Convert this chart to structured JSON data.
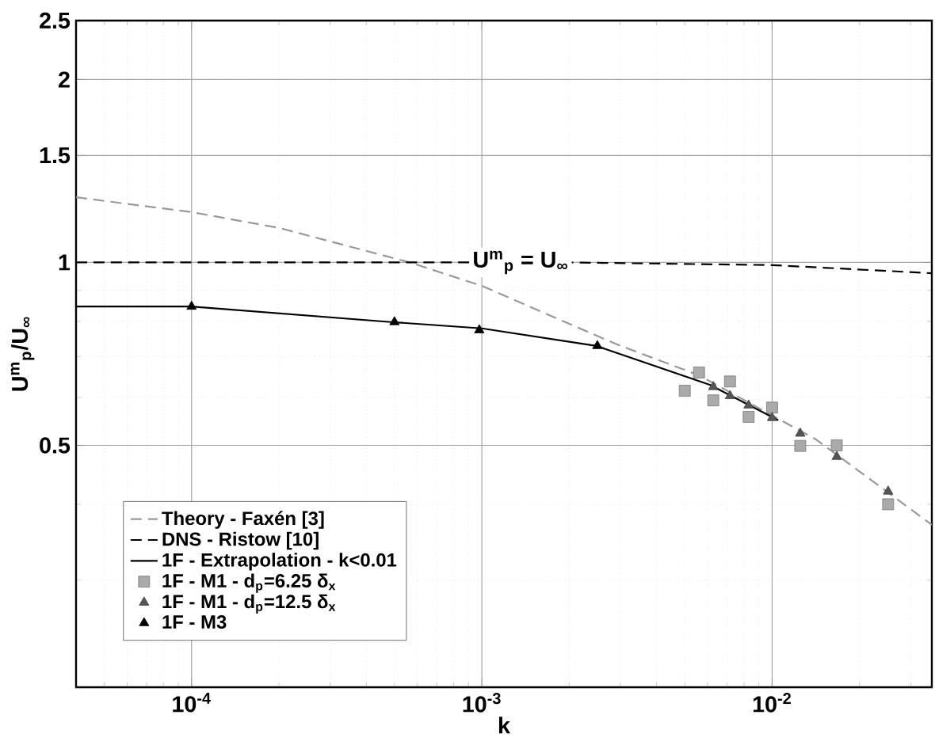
{
  "chart_data": {
    "type": "line",
    "xlabel": "k",
    "ylabel": "U$^{m}$$_{p}$/U$_{∞}$",
    "log": "xy",
    "grid": true,
    "legend": "bottom left",
    "xlim": [
      4e-05,
      0.0355
    ],
    "xticks": [
      {
        "value": 0.0001,
        "label": "10$^{-4}$"
      },
      {
        "value": 0.001,
        "label": "10$^{-3}$"
      },
      {
        "value": 0.01,
        "label": "10$^{-2}$"
      }
    ],
    "ylim": [
      0.2,
      2.5
    ],
    "yticks": [
      0.5,
      1,
      1.5,
      2,
      2.5
    ],
    "annotations": [
      {
        "text": "U$^{m}$$_{p}$ = U$_{∞}$",
        "x": 0.00136,
        "y": 1
      }
    ],
    "series": [
      {
        "name": "Theory - Faxén [3]",
        "color": "#999999",
        "line_style": "dashed",
        "marker": "none",
        "x": [
          4e-05,
          0.0001,
          0.0002,
          0.000565,
          0.001,
          0.0029,
          0.0056,
          0.0142,
          0.0355
        ],
        "values": [
          1.28,
          1.21,
          1.14,
          1.0,
          0.915,
          0.734,
          0.652,
          0.511,
          0.37
        ]
      },
      {
        "name": "DNS - Ristow [10]",
        "color": "#000000",
        "line_style": "dashed",
        "marker": "none",
        "x": [
          4e-05,
          0.002,
          0.01,
          0.0355
        ],
        "values": [
          1,
          1,
          0.99,
          0.96
        ]
      },
      {
        "name": "1F - Extrapolation - k<0.01",
        "color": "#000000",
        "line_style": "solid",
        "marker": "none",
        "x": [
          4e-05,
          0.0001,
          0.000486,
          0.001,
          0.00248,
          0.0061,
          0.0105
        ],
        "values": [
          0.846,
          0.846,
          0.798,
          0.779,
          0.729,
          0.629,
          0.55
        ]
      },
      {
        "name": "1F - M1 - d$_{p}$=6.25 δ$_{x}$",
        "type": "scatter",
        "color": "#aaaaaa",
        "marker": "square",
        "x": [
          0.0056,
          0.005,
          0.00627,
          0.00716,
          0.0083,
          0.01,
          0.0125,
          0.0167,
          0.0251
        ],
        "values": [
          0.659,
          0.615,
          0.593,
          0.637,
          0.557,
          0.577,
          0.499,
          0.5,
          0.4
        ]
      },
      {
        "name": "1F - M1 - d$_{p}$=12.5 δ$_{x}$",
        "type": "scatter",
        "color": "#555555",
        "marker": "triangle",
        "x": [
          0.00627,
          0.00716,
          0.0083,
          0.01,
          0.0125,
          0.0167,
          0.0251
        ],
        "values": [
          0.624,
          0.603,
          0.582,
          0.555,
          0.523,
          0.479,
          0.42
        ]
      },
      {
        "name": "1F - M3",
        "type": "scatter",
        "color": "#000000",
        "marker": "triangle",
        "x": [
          0.0001,
          0.0005,
          0.00098,
          0.0025
        ],
        "values": [
          0.846,
          0.798,
          0.774,
          0.729
        ]
      }
    ]
  }
}
